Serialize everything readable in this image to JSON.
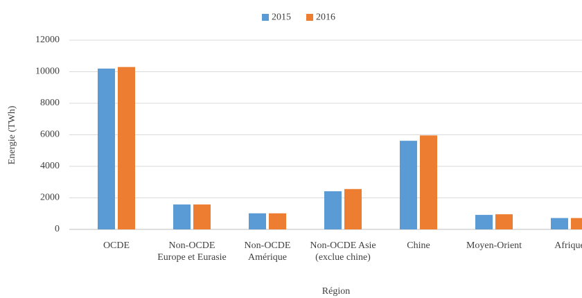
{
  "chart_data": {
    "type": "bar",
    "categories": [
      "OCDE",
      "Non-OCDE Europe et Eurasie",
      "Non-OCDE Amérique",
      "Non-OCDE Asie (exclue chine)",
      "Chine",
      "Moyen-Orient",
      "Afrique"
    ],
    "series": [
      {
        "name": "2015",
        "color": "#5b9bd5",
        "values": [
          10200,
          1580,
          1020,
          2420,
          5620,
          920,
          720
        ]
      },
      {
        "name": "2016",
        "color": "#ed7d31",
        "values": [
          10300,
          1580,
          1020,
          2560,
          5960,
          960,
          720
        ]
      }
    ],
    "xlabel": "Région",
    "ylabel": "Energie (TWh)",
    "ylim": [
      0,
      12000
    ],
    "yticks": [
      0,
      2000,
      4000,
      6000,
      8000,
      10000,
      12000
    ],
    "grid": true,
    "legend": "top"
  }
}
